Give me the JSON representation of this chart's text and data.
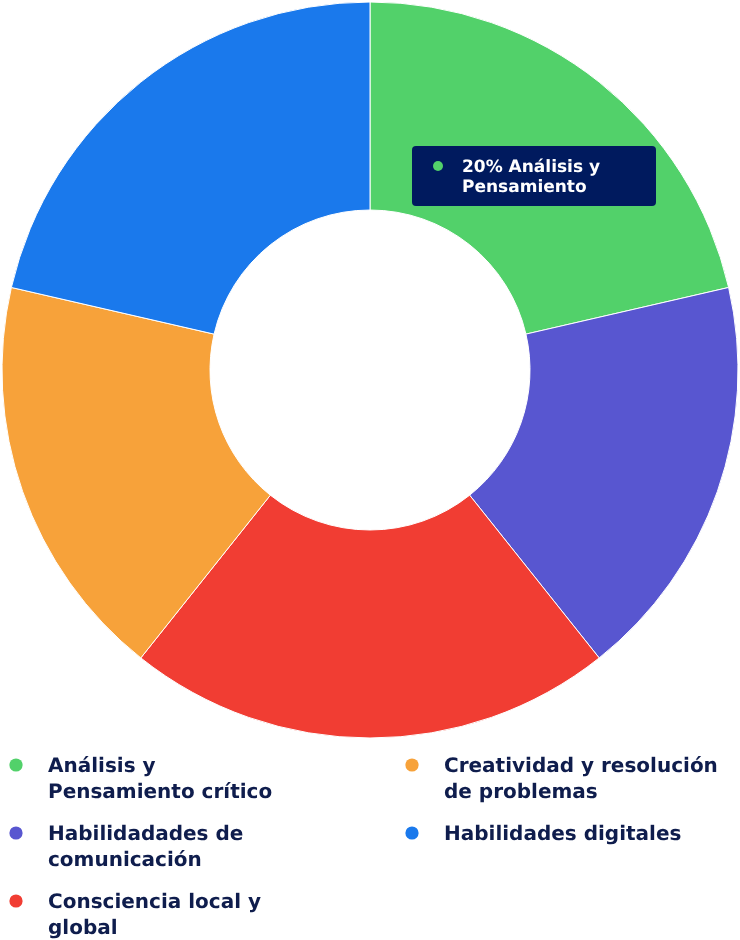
{
  "chart_data": {
    "type": "donut",
    "categories": [
      "Análisis y Pensamiento crítico",
      "Habilidadades de comunicación",
      "Consciencia local y global",
      "Creatividad y resolución de problemas",
      "Habilidades digitales"
    ],
    "values": [
      21.4,
      17.9,
      21.4,
      17.9,
      21.4
    ],
    "colors": [
      "#52d16a",
      "#5856d0",
      "#f13d33",
      "#f7a23a",
      "#1a79ec"
    ],
    "legend": "bottom",
    "annotations": [
      "20% Análisis y Pensamiento"
    ]
  }
}
